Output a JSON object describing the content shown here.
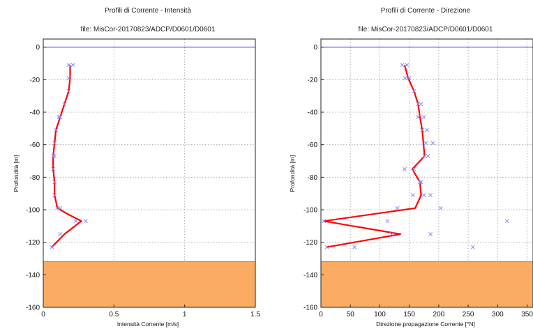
{
  "chart_data": [
    {
      "type": "line",
      "title": "Profili di Corrente - Intensità",
      "subtitle": "file: MisCor-20170823/ADCP/D0601/D0601",
      "xlabel": "Intensità  Corrente [m/s]",
      "ylabel": "Profondità  [m]",
      "xlim": [
        0,
        1.5
      ],
      "ylim": [
        -160,
        5
      ],
      "xticks": [
        "0",
        "0.5",
        "1",
        "1.5"
      ],
      "yticks": [
        "0",
        "-20",
        "-40",
        "-60",
        "-80",
        "-100",
        "-120",
        "-140",
        "-160"
      ],
      "grid": true,
      "surface_line_y": 0,
      "seabed_y": -132,
      "colors": {
        "line": "#ff0000",
        "markers": "#8a8aff",
        "seabed": "#fcab63",
        "surface": "#2b2bff"
      },
      "series": [
        {
          "kind": "line",
          "points": [
            [
              0.19,
              -11
            ],
            [
              0.19,
              -19
            ],
            [
              0.18,
              -27
            ],
            [
              0.15,
              -35
            ],
            [
              0.12,
              -43
            ],
            [
              0.09,
              -51
            ],
            [
              0.08,
              -59
            ],
            [
              0.07,
              -67
            ],
            [
              0.07,
              -75
            ],
            [
              0.08,
              -83
            ],
            [
              0.08,
              -91
            ],
            [
              0.1,
              -99
            ],
            [
              0.18,
              -103
            ],
            [
              0.27,
              -107
            ],
            [
              0.15,
              -115
            ],
            [
              0.06,
              -123
            ]
          ]
        },
        {
          "kind": "scatter",
          "points": [
            [
              0.18,
              -11
            ],
            [
              0.21,
              -11
            ],
            [
              0.18,
              -19
            ],
            [
              0.18,
              -27
            ],
            [
              0.15,
              -35
            ],
            [
              0.11,
              -43
            ],
            [
              0.12,
              -43
            ],
            [
              0.09,
              -51
            ],
            [
              0.08,
              -59
            ],
            [
              0.07,
              -67
            ],
            [
              0.08,
              -67
            ],
            [
              0.07,
              -75
            ],
            [
              0.08,
              -83
            ],
            [
              0.08,
              -91
            ],
            [
              0.1,
              -99
            ],
            [
              0.12,
              -99
            ],
            [
              0.23,
              -107
            ],
            [
              0.3,
              -107
            ],
            [
              0.12,
              -115
            ],
            [
              0.06,
              -123
            ]
          ]
        }
      ]
    },
    {
      "type": "line",
      "title": "Profili di Corrente - Direzione",
      "subtitle": "file: MisCor-20170823/ADCP/D0601/D0601",
      "xlabel": "Direzione propagazione Corrente [°N]",
      "ylabel": "Profondità [m]",
      "xlim": [
        0,
        360
      ],
      "ylim": [
        -160,
        5
      ],
      "xticks": [
        "0",
        "50",
        "100",
        "150",
        "200",
        "250",
        "300",
        "350"
      ],
      "yticks": [
        "0",
        "-20",
        "-40",
        "-60",
        "-80",
        "-100",
        "-120",
        "-140",
        "-160"
      ],
      "grid": true,
      "surface_line_y": 0,
      "seabed_y": -132,
      "colors": {
        "line": "#ff0000",
        "markers": "#8a8aff",
        "seabed": "#fcab63",
        "surface": "#2b2bff"
      },
      "series": [
        {
          "kind": "line",
          "points": [
            [
              142,
              -11
            ],
            [
              148,
              -19
            ],
            [
              158,
              -27
            ],
            [
              165,
              -35
            ],
            [
              168,
              -43
            ],
            [
              172,
              -51
            ],
            [
              174,
              -59
            ],
            [
              176,
              -67
            ],
            [
              155,
              -75
            ],
            [
              168,
              -83
            ],
            [
              170,
              -91
            ],
            [
              160,
              -99
            ],
            [
              5,
              -107
            ],
            [
              135,
              -115
            ],
            [
              10,
              -123
            ]
          ]
        },
        {
          "kind": "scatter",
          "points": [
            [
              138,
              -11
            ],
            [
              146,
              -11
            ],
            [
              143,
              -19
            ],
            [
              150,
              -19
            ],
            [
              158,
              -27
            ],
            [
              165,
              -35
            ],
            [
              170,
              -35
            ],
            [
              165,
              -43
            ],
            [
              175,
              -43
            ],
            [
              180,
              -51
            ],
            [
              172,
              -51
            ],
            [
              178,
              -59
            ],
            [
              190,
              -59
            ],
            [
              176,
              -67
            ],
            [
              182,
              -67
            ],
            [
              142,
              -75
            ],
            [
              158,
              -75
            ],
            [
              168,
              -83
            ],
            [
              170,
              -83
            ],
            [
              156,
              -91
            ],
            [
              186,
              -91
            ],
            [
              175,
              -91
            ],
            [
              130,
              -99
            ],
            [
              203,
              -99
            ],
            [
              5,
              -107
            ],
            [
              113,
              -107
            ],
            [
              316,
              -107
            ],
            [
              120,
              -115
            ],
            [
              186,
              -115
            ],
            [
              10,
              -123
            ],
            [
              57,
              -123
            ],
            [
              258,
              -123
            ]
          ]
        }
      ]
    }
  ]
}
